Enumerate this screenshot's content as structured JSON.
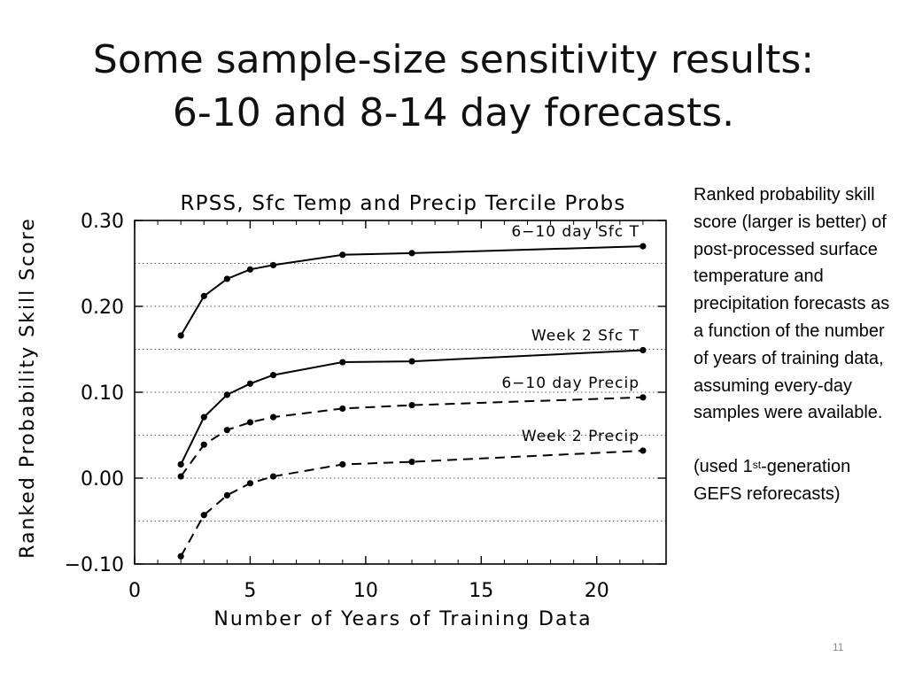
{
  "slide": {
    "title_line1": "Some sample-size sensitivity results:",
    "title_line2": "6-10 and 8-14 day forecasts.",
    "page_number": "11"
  },
  "side_note": {
    "paragraph1": "Ranked probability skill score (larger is better) of post-processed surface temperature and precipitation forecasts as a function of the number of years of training data, assuming every-day samples were available.",
    "paragraph2_prefix": "(used 1",
    "paragraph2_sup": "st",
    "paragraph2_suffix": "-generation GEFS reforecasts)"
  },
  "chart_data": {
    "type": "line",
    "title": "RPSS, Sfc Temp and Precip Tercile Probs",
    "xlabel": "Number of Years of Training Data",
    "ylabel": "Ranked Probability Skill Score",
    "xlim": [
      0,
      23
    ],
    "ylim": [
      -0.1,
      0.3
    ],
    "xticks": [
      "0",
      "5",
      "10",
      "15",
      "20"
    ],
    "yticks": [
      "0.30",
      "0.20",
      "0.10",
      "0.00",
      "−0.10"
    ],
    "grid": "dotted horizontal",
    "x": [
      2,
      3,
      4,
      5,
      6,
      9,
      12,
      22
    ],
    "series": [
      {
        "name": "6−10 day Sfc T",
        "style": "solid",
        "values": [
          0.166,
          0.212,
          0.232,
          0.243,
          0.248,
          0.26,
          0.262,
          0.27
        ]
      },
      {
        "name": "Week 2 Sfc T",
        "style": "solid",
        "values": [
          0.016,
          0.071,
          0.097,
          0.11,
          0.12,
          0.135,
          0.136,
          0.149
        ]
      },
      {
        "name": "6−10 day Precip",
        "style": "dashed",
        "values": [
          0.002,
          0.039,
          0.056,
          0.065,
          0.071,
          0.081,
          0.085,
          0.094
        ]
      },
      {
        "name": "Week 2 Precip",
        "style": "dashed",
        "values": [
          -0.091,
          -0.043,
          -0.02,
          -0.006,
          0.002,
          0.016,
          0.019,
          0.032
        ]
      }
    ]
  }
}
